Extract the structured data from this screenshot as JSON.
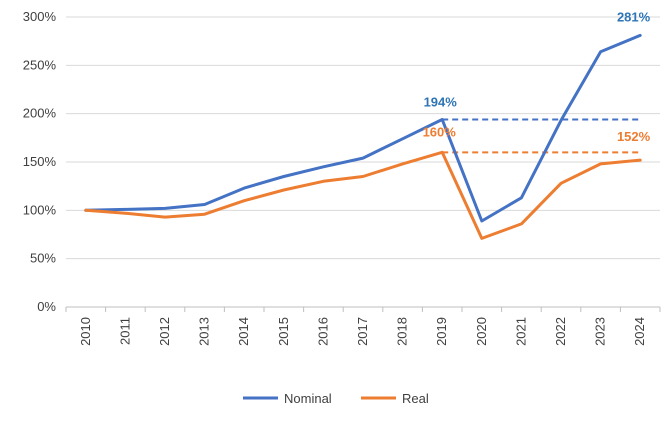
{
  "chart_data": {
    "type": "line",
    "categories": [
      "2010",
      "2011",
      "2012",
      "2013",
      "2014",
      "2015",
      "2016",
      "2017",
      "2018",
      "2019",
      "2020",
      "2021",
      "2022",
      "2023",
      "2024"
    ],
    "series": [
      {
        "name": "Nominal",
        "color": "#4472C4",
        "values": [
          100,
          101,
          102,
          106,
          123,
          135,
          145,
          154,
          174,
          194,
          89,
          113,
          193,
          264,
          281
        ]
      },
      {
        "name": "Real",
        "color": "#ED7D31",
        "values": [
          100,
          97,
          93,
          96,
          110,
          121,
          130,
          135,
          148,
          160,
          71,
          86,
          128,
          148,
          152
        ]
      }
    ],
    "reference_lines": [
      {
        "series": "Nominal",
        "value": 194,
        "from": "2019",
        "to": "2024",
        "style": "dashed",
        "color": "#4472C4"
      },
      {
        "series": "Real",
        "value": 160,
        "from": "2019",
        "to": "2024",
        "style": "dashed",
        "color": "#ED7D31"
      }
    ],
    "data_labels": [
      {
        "series": "Nominal",
        "category": "2019",
        "text": "194%",
        "color": "#2E75B6"
      },
      {
        "series": "Real",
        "category": "2019",
        "text": "160%",
        "color": "#ED7D31"
      },
      {
        "series": "Nominal",
        "category": "2024",
        "text": "281%",
        "color": "#2E75B6"
      },
      {
        "series": "Real",
        "category": "2024",
        "text": "152%",
        "color": "#ED7D31"
      }
    ],
    "y_ticks": [
      0,
      50,
      100,
      150,
      200,
      250,
      300
    ],
    "y_tick_suffix": "%",
    "ylim": [
      0,
      300
    ],
    "grid": "horizontal",
    "legend_position": "bottom-center",
    "title": "",
    "xlabel": "",
    "ylabel": ""
  }
}
